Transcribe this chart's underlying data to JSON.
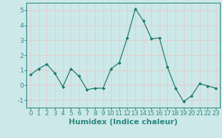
{
  "x": [
    0,
    1,
    2,
    3,
    4,
    5,
    6,
    7,
    8,
    9,
    10,
    11,
    12,
    13,
    14,
    15,
    16,
    17,
    18,
    19,
    20,
    21,
    22,
    23
  ],
  "y": [
    0.7,
    1.1,
    1.4,
    0.8,
    -0.1,
    1.1,
    0.6,
    -0.3,
    -0.2,
    -0.2,
    1.1,
    1.5,
    3.15,
    5.1,
    4.3,
    3.1,
    3.15,
    1.2,
    -0.2,
    -1.1,
    -0.7,
    0.1,
    -0.05,
    -0.2
  ],
  "line_color": "#1a7a6e",
  "marker": "D",
  "marker_size": 2.0,
  "xlabel": "Humidex (Indice chaleur)",
  "ylim": [
    -1.5,
    5.5
  ],
  "xlim": [
    -0.5,
    23.5
  ],
  "yticks": [
    -1,
    0,
    1,
    2,
    3,
    4,
    5
  ],
  "xticks": [
    0,
    1,
    2,
    3,
    4,
    5,
    6,
    7,
    8,
    9,
    10,
    11,
    12,
    13,
    14,
    15,
    16,
    17,
    18,
    19,
    20,
    21,
    22,
    23
  ],
  "bg_color": "#cce8e8",
  "grid_color": "#f0f0f0",
  "spine_color": "#2a8a7e",
  "tick_fontsize": 6.5,
  "xlabel_fontsize": 8.0
}
